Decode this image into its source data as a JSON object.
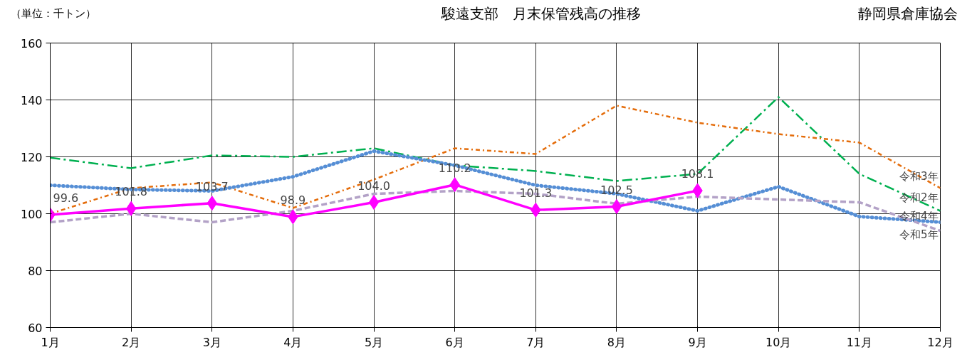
{
  "chart_data": {
    "type": "line",
    "title": "駿遠支部　月末保管残高の推移",
    "annotations": [
      "（単位：千トン）",
      "静岡県倉庫協会"
    ],
    "categories": [
      "1月",
      "2月",
      "3月",
      "4月",
      "5月",
      "6月",
      "7月",
      "8月",
      "9月",
      "10月",
      "11月",
      "12月"
    ],
    "ylim": [
      60,
      160
    ],
    "yticks": [
      60,
      80,
      100,
      120,
      140,
      160
    ],
    "grid": true,
    "legend": false,
    "marker": "none",
    "series": [
      {
        "name": "令和2年",
        "color": "#00b050",
        "line_style": "dashdot",
        "values": [
          119.7,
          116,
          120.5,
          120,
          123,
          117,
          115,
          111.5,
          114,
          141,
          114,
          101
        ]
      },
      {
        "name": "令和3年",
        "color": "#e46c0a",
        "line_style": "dashdotted",
        "values": [
          100,
          109,
          111,
          102,
          112,
          123,
          121,
          138,
          132,
          128,
          125,
          109
        ]
      },
      {
        "name": "令和4年",
        "color": "#558ed5",
        "line_style": "dotted",
        "values": [
          110,
          108.5,
          108,
          113,
          122,
          117,
          110,
          107,
          101,
          109.5,
          99,
          97
        ]
      },
      {
        "name": "令和5年",
        "color": "#b3a2c7",
        "line_style": "dashed",
        "values": [
          97,
          100,
          97,
          101,
          107,
          108,
          107,
          103.5,
          106,
          105,
          104,
          94
        ]
      },
      {
        "color": "#ff00ff",
        "line_style": "solid",
        "marker": "diamond",
        "values": [
          99.6,
          101.8,
          103.7,
          98.9,
          104.0,
          110.2,
          101.3,
          102.5,
          108.1,
          null,
          null,
          null
        ],
        "value_labels": [
          "99.6",
          "101.8",
          "103.7",
          "98.9",
          "104.0",
          "110.2",
          "101.3",
          "102.5",
          "108.1",
          null,
          null,
          null
        ]
      }
    ]
  }
}
